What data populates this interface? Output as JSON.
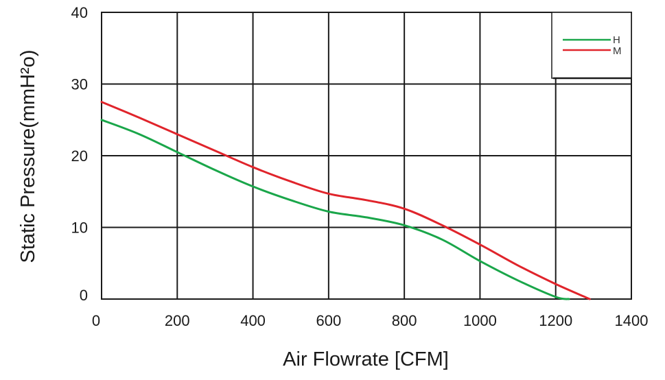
{
  "chart_data": {
    "type": "line",
    "xlabel": "Air  Flowrate   [CFM]",
    "ylabel": "Static Pressure(mmH²o)",
    "xlim": [
      0,
      1400
    ],
    "ylim": [
      0,
      40
    ],
    "x_ticks": [
      "0",
      "200",
      "400",
      "600",
      "800",
      "1000",
      "1200",
      "1400"
    ],
    "y_ticks": [
      "0",
      "10",
      "20",
      "30",
      "40"
    ],
    "x_tick_values": [
      0,
      200,
      400,
      600,
      800,
      1000,
      1200,
      1400
    ],
    "y_tick_values": [
      0,
      10,
      20,
      30,
      40
    ],
    "grid": true,
    "legend_position": "top-right",
    "series": [
      {
        "name": "H",
        "color": "#1aa64a",
        "x": [
          0,
          100,
          200,
          300,
          400,
          500,
          600,
          700,
          800,
          900,
          1000,
          1100,
          1200,
          1235
        ],
        "y": [
          25,
          23,
          20.5,
          18,
          15.7,
          13.8,
          12.2,
          11.4,
          10.3,
          8.3,
          5.3,
          2.6,
          0.3,
          0
        ]
      },
      {
        "name": "M",
        "color": "#e0242b",
        "x": [
          0,
          100,
          200,
          300,
          400,
          500,
          600,
          700,
          800,
          900,
          1000,
          1100,
          1200,
          1290
        ],
        "y": [
          27.5,
          25.3,
          23,
          20.7,
          18.4,
          16.4,
          14.7,
          13.8,
          12.6,
          10.3,
          7.6,
          4.7,
          2.1,
          0
        ]
      }
    ]
  }
}
